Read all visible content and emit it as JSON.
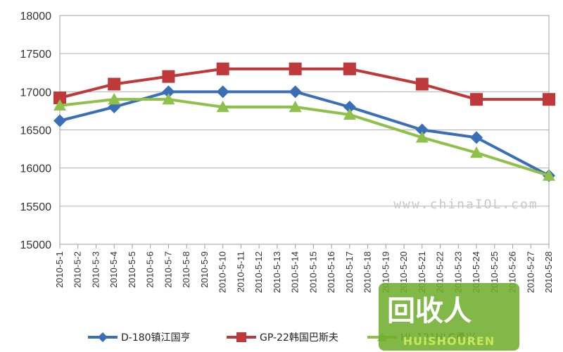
{
  "chart_data": {
    "type": "line",
    "categories": [
      "2010-5-1",
      "2010-5-2",
      "2010-5-3",
      "2010-5-4",
      "2010-5-5",
      "2010-5-6",
      "2010-5-7",
      "2010-5-8",
      "2010-5-9",
      "2010-5-10",
      "2010-5-11",
      "2010-5-12",
      "2010-5-13",
      "2010-5-14",
      "2010-5-15",
      "2010-5-16",
      "2010-5-17",
      "2010-5-18",
      "2010-5-19",
      "2010-5-20",
      "2010-5-21",
      "2010-5-22",
      "2010-5-23",
      "2010-5-24",
      "2010-5-25",
      "2010-5-26",
      "2010-5-27",
      "2010-5-28"
    ],
    "ylim": [
      15000,
      18000
    ],
    "yticks": [
      15000,
      15500,
      16000,
      16500,
      17000,
      17500,
      18000
    ],
    "grid": "horizontal",
    "legend_position": "bottom",
    "series": [
      {
        "name": "D-180镇江国亨",
        "color": "#3a6fb8",
        "marker": "diamond",
        "points": [
          {
            "x": "2010-5-1",
            "y": 16620
          },
          {
            "x": "2010-5-4",
            "y": 16800
          },
          {
            "x": "2010-5-7",
            "y": 17000
          },
          {
            "x": "2010-5-10",
            "y": 17000
          },
          {
            "x": "2010-5-14",
            "y": 17000
          },
          {
            "x": "2010-5-17",
            "y": 16800
          },
          {
            "x": "2010-5-21",
            "y": 16500
          },
          {
            "x": "2010-5-24",
            "y": 16400
          },
          {
            "x": "2010-5-28",
            "y": 15900
          }
        ]
      },
      {
        "name": "GP-22韩国巴斯夫",
        "color": "#c0393a",
        "marker": "square",
        "points": [
          {
            "x": "2010-5-1",
            "y": 16920
          },
          {
            "x": "2010-5-4",
            "y": 17100
          },
          {
            "x": "2010-5-7",
            "y": 17200
          },
          {
            "x": "2010-5-10",
            "y": 17300
          },
          {
            "x": "2010-5-14",
            "y": 17300
          },
          {
            "x": "2010-5-17",
            "y": 17300
          },
          {
            "x": "2010-5-21",
            "y": 17100
          },
          {
            "x": "2010-5-24",
            "y": 16900
          },
          {
            "x": "2010-5-28",
            "y": 16900
          }
        ]
      },
      {
        "name": "HL-121HLG勇兴",
        "color": "#8fc14a",
        "marker": "triangle",
        "points": [
          {
            "x": "2010-5-1",
            "y": 16820
          },
          {
            "x": "2010-5-4",
            "y": 16900
          },
          {
            "x": "2010-5-7",
            "y": 16900
          },
          {
            "x": "2010-5-10",
            "y": 16800
          },
          {
            "x": "2010-5-14",
            "y": 16800
          },
          {
            "x": "2010-5-17",
            "y": 16700
          },
          {
            "x": "2010-5-21",
            "y": 16400
          },
          {
            "x": "2010-5-24",
            "y": 16200
          },
          {
            "x": "2010-5-28",
            "y": 15900
          }
        ]
      }
    ]
  },
  "watermark": "www.chinaIOL.com",
  "logo": {
    "main": "回收人",
    "sub": "HUISHOUREN",
    "color": "#8cc63f"
  }
}
